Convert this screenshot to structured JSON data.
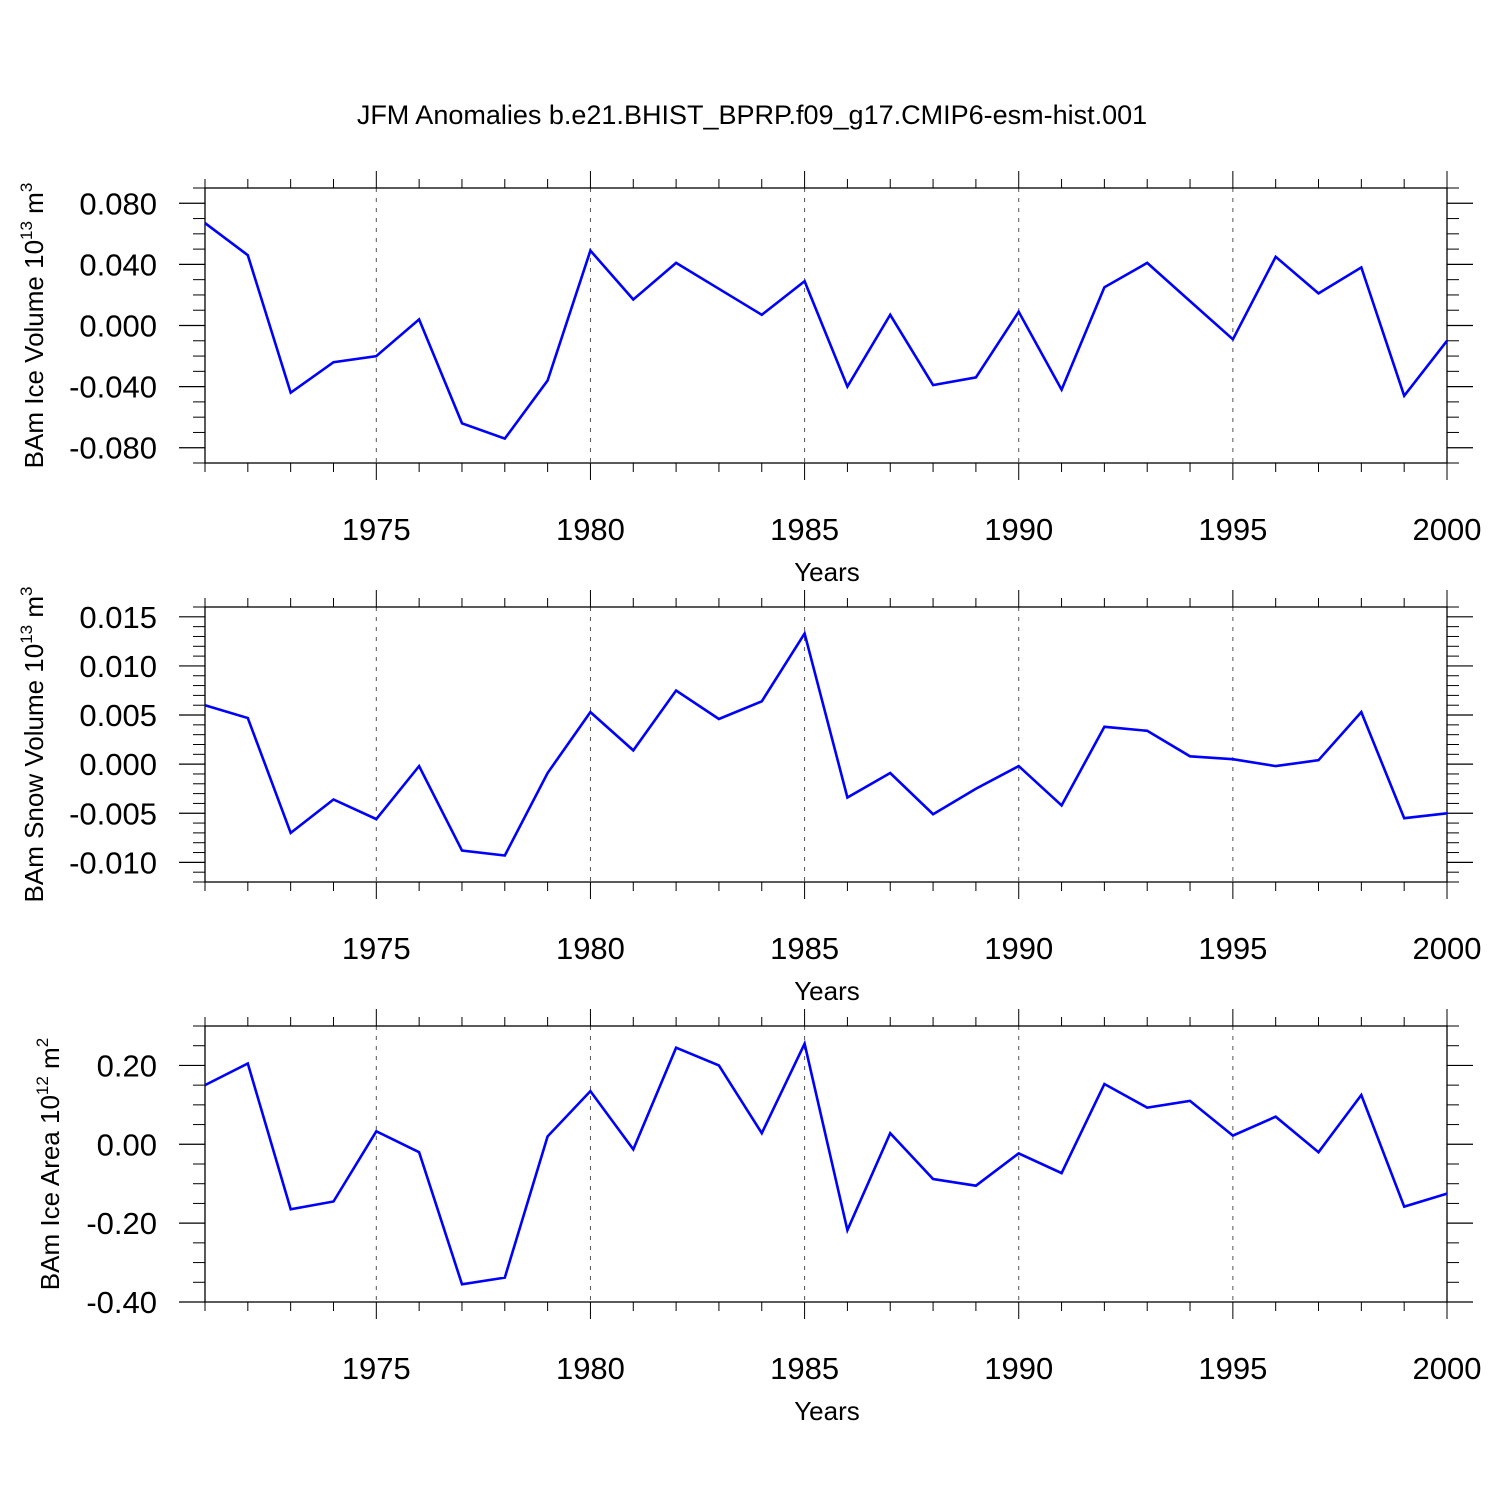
{
  "figure": {
    "title": "JFM Anomalies b.e21.BHIST_BPRP.f09_g17.CMIP6-esm-hist.001",
    "line_color": "#0000ff",
    "axis_color": "#000000",
    "grid_color": "#555555"
  },
  "chart_data": [
    {
      "type": "line",
      "title": "JFM Anomalies b.e21.BHIST_BPRP.f09_g17.CMIP6-esm-hist.001",
      "ylabel": "BAm Ice Volume",
      "ylabel_unit": "10",
      "ylabel_exp": "13",
      "ylabel_tail": " m",
      "ylabel_tail_exp": "3",
      "xlabel": "Years",
      "xlim": [
        1971,
        2000
      ],
      "ylim": [
        -0.09,
        0.09
      ],
      "xticks": [
        1975,
        1980,
        1985,
        1990,
        1995,
        2000
      ],
      "yticks": [
        -0.08,
        -0.04,
        0.0,
        0.04,
        0.08
      ],
      "ytick_labels": [
        "-0.080",
        "-0.040",
        "0.000",
        "0.040",
        "0.080"
      ],
      "yminor_step": 0.01,
      "x": [
        1971,
        1972,
        1973,
        1974,
        1975,
        1976,
        1977,
        1978,
        1979,
        1980,
        1981,
        1982,
        1983,
        1984,
        1985,
        1986,
        1987,
        1988,
        1989,
        1990,
        1991,
        1992,
        1993,
        1994,
        1995,
        1996,
        1997,
        1998,
        1999,
        2000
      ],
      "series": [
        {
          "name": "BAm Ice Volume",
          "values": [
            0.067,
            0.046,
            -0.044,
            -0.024,
            -0.02,
            0.004,
            -0.064,
            -0.074,
            -0.036,
            0.049,
            0.017,
            0.041,
            0.024,
            0.007,
            0.029,
            -0.04,
            0.007,
            -0.039,
            -0.034,
            0.009,
            -0.042,
            0.025,
            0.041,
            0.016,
            -0.009,
            0.045,
            0.021,
            0.038,
            -0.046,
            -0.01
          ]
        }
      ]
    },
    {
      "type": "line",
      "ylabel": "BAm Snow Volume",
      "ylabel_unit": "10",
      "ylabel_exp": "13",
      "ylabel_tail": " m",
      "ylabel_tail_exp": "3",
      "xlabel": "Years",
      "xlim": [
        1971,
        2000
      ],
      "ylim": [
        -0.012,
        0.016
      ],
      "xticks": [
        1975,
        1980,
        1985,
        1990,
        1995,
        2000
      ],
      "yticks": [
        -0.01,
        -0.005,
        0.0,
        0.005,
        0.01,
        0.015
      ],
      "ytick_labels": [
        "-0.010",
        "-0.005",
        "0.000",
        "0.005",
        "0.010",
        "0.015"
      ],
      "yminor_step": 0.001,
      "x": [
        1971,
        1972,
        1973,
        1974,
        1975,
        1976,
        1977,
        1978,
        1979,
        1980,
        1981,
        1982,
        1983,
        1984,
        1985,
        1986,
        1987,
        1988,
        1989,
        1990,
        1991,
        1992,
        1993,
        1994,
        1995,
        1996,
        1997,
        1998,
        1999,
        2000
      ],
      "series": [
        {
          "name": "BAm Snow Volume",
          "values": [
            0.006,
            0.0047,
            -0.007,
            -0.0036,
            -0.0056,
            -0.0002,
            -0.0088,
            -0.0093,
            -0.0009,
            0.0053,
            0.0014,
            0.0075,
            0.0046,
            0.0064,
            0.0133,
            -0.0034,
            -0.0009,
            -0.0051,
            -0.0025,
            -0.0002,
            -0.0042,
            0.0038,
            0.0034,
            0.0008,
            0.0005,
            -0.0002,
            0.0004,
            0.0053,
            -0.0055,
            -0.005
          ]
        }
      ]
    },
    {
      "type": "line",
      "ylabel": "BAm Ice Area",
      "ylabel_unit": "10",
      "ylabel_exp": "12",
      "ylabel_tail": " m",
      "ylabel_tail_exp": "2",
      "xlabel": "Years",
      "xlim": [
        1971,
        2000
      ],
      "ylim": [
        -0.4,
        0.3
      ],
      "xticks": [
        1975,
        1980,
        1985,
        1990,
        1995,
        2000
      ],
      "yticks": [
        -0.4,
        -0.2,
        0.0,
        0.2
      ],
      "ytick_labels": [
        "-0.40",
        "-0.20",
        "0.00",
        "0.20"
      ],
      "yminor_step": 0.05,
      "x": [
        1971,
        1972,
        1973,
        1974,
        1975,
        1976,
        1977,
        1978,
        1979,
        1980,
        1981,
        1982,
        1983,
        1984,
        1985,
        1986,
        1987,
        1988,
        1989,
        1990,
        1991,
        1992,
        1993,
        1994,
        1995,
        1996,
        1997,
        1998,
        1999,
        2000
      ],
      "series": [
        {
          "name": "BAm Ice Area",
          "values": [
            0.15,
            0.205,
            -0.165,
            -0.145,
            0.033,
            -0.02,
            -0.355,
            -0.338,
            0.02,
            0.135,
            -0.013,
            0.245,
            0.2,
            0.028,
            0.255,
            -0.218,
            0.028,
            -0.088,
            -0.105,
            -0.023,
            -0.073,
            0.153,
            0.093,
            0.11,
            0.022,
            0.07,
            -0.02,
            0.125,
            -0.158,
            -0.125
          ]
        }
      ]
    }
  ]
}
